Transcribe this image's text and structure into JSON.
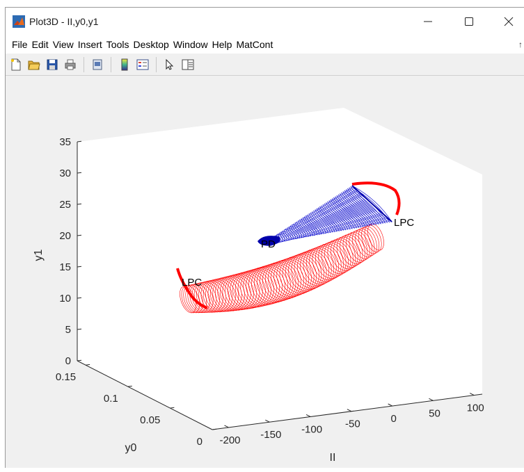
{
  "window": {
    "title": "Plot3D - II,y0,y1",
    "controls": [
      "minimize-icon",
      "maximize-icon",
      "close-icon"
    ]
  },
  "menu": {
    "items": [
      "File",
      "Edit",
      "View",
      "Insert",
      "Tools",
      "Desktop",
      "Window",
      "Help",
      "MatCont"
    ]
  },
  "toolbar": {
    "buttons": [
      "new-figure-icon",
      "open-file-icon",
      "save-icon",
      "print-icon",
      "print-preview-icon",
      "colorbar-icon",
      "legend-icon",
      "pointer-icon",
      "property-editor-icon"
    ]
  },
  "chart_data": {
    "type": "line",
    "projection": "3d",
    "xlabel": "II",
    "ylabel": "y0",
    "zlabel": "y1",
    "x_ticks": [
      -200,
      -150,
      -100,
      -50,
      0,
      50,
      100
    ],
    "y_ticks": [
      0,
      0.05,
      0.1,
      0.15
    ],
    "z_ticks": [
      0,
      5,
      10,
      15,
      20,
      25,
      30,
      35
    ],
    "xlim": [
      -220,
      110
    ],
    "ylim": [
      0,
      0.16
    ],
    "zlim": [
      0,
      35
    ],
    "grid": false,
    "series": [
      {
        "color": "#ff0000",
        "description_shape": "family of closed limit cycles",
        "values_ii_range": [
          -200,
          60
        ]
      },
      {
        "color": "#0000cc",
        "description_shape": "family of closed limit cycles",
        "values_ii_range": [
          -110,
          60
        ]
      }
    ],
    "annotations": [
      "LPC",
      "LPC",
      "PD"
    ]
  }
}
